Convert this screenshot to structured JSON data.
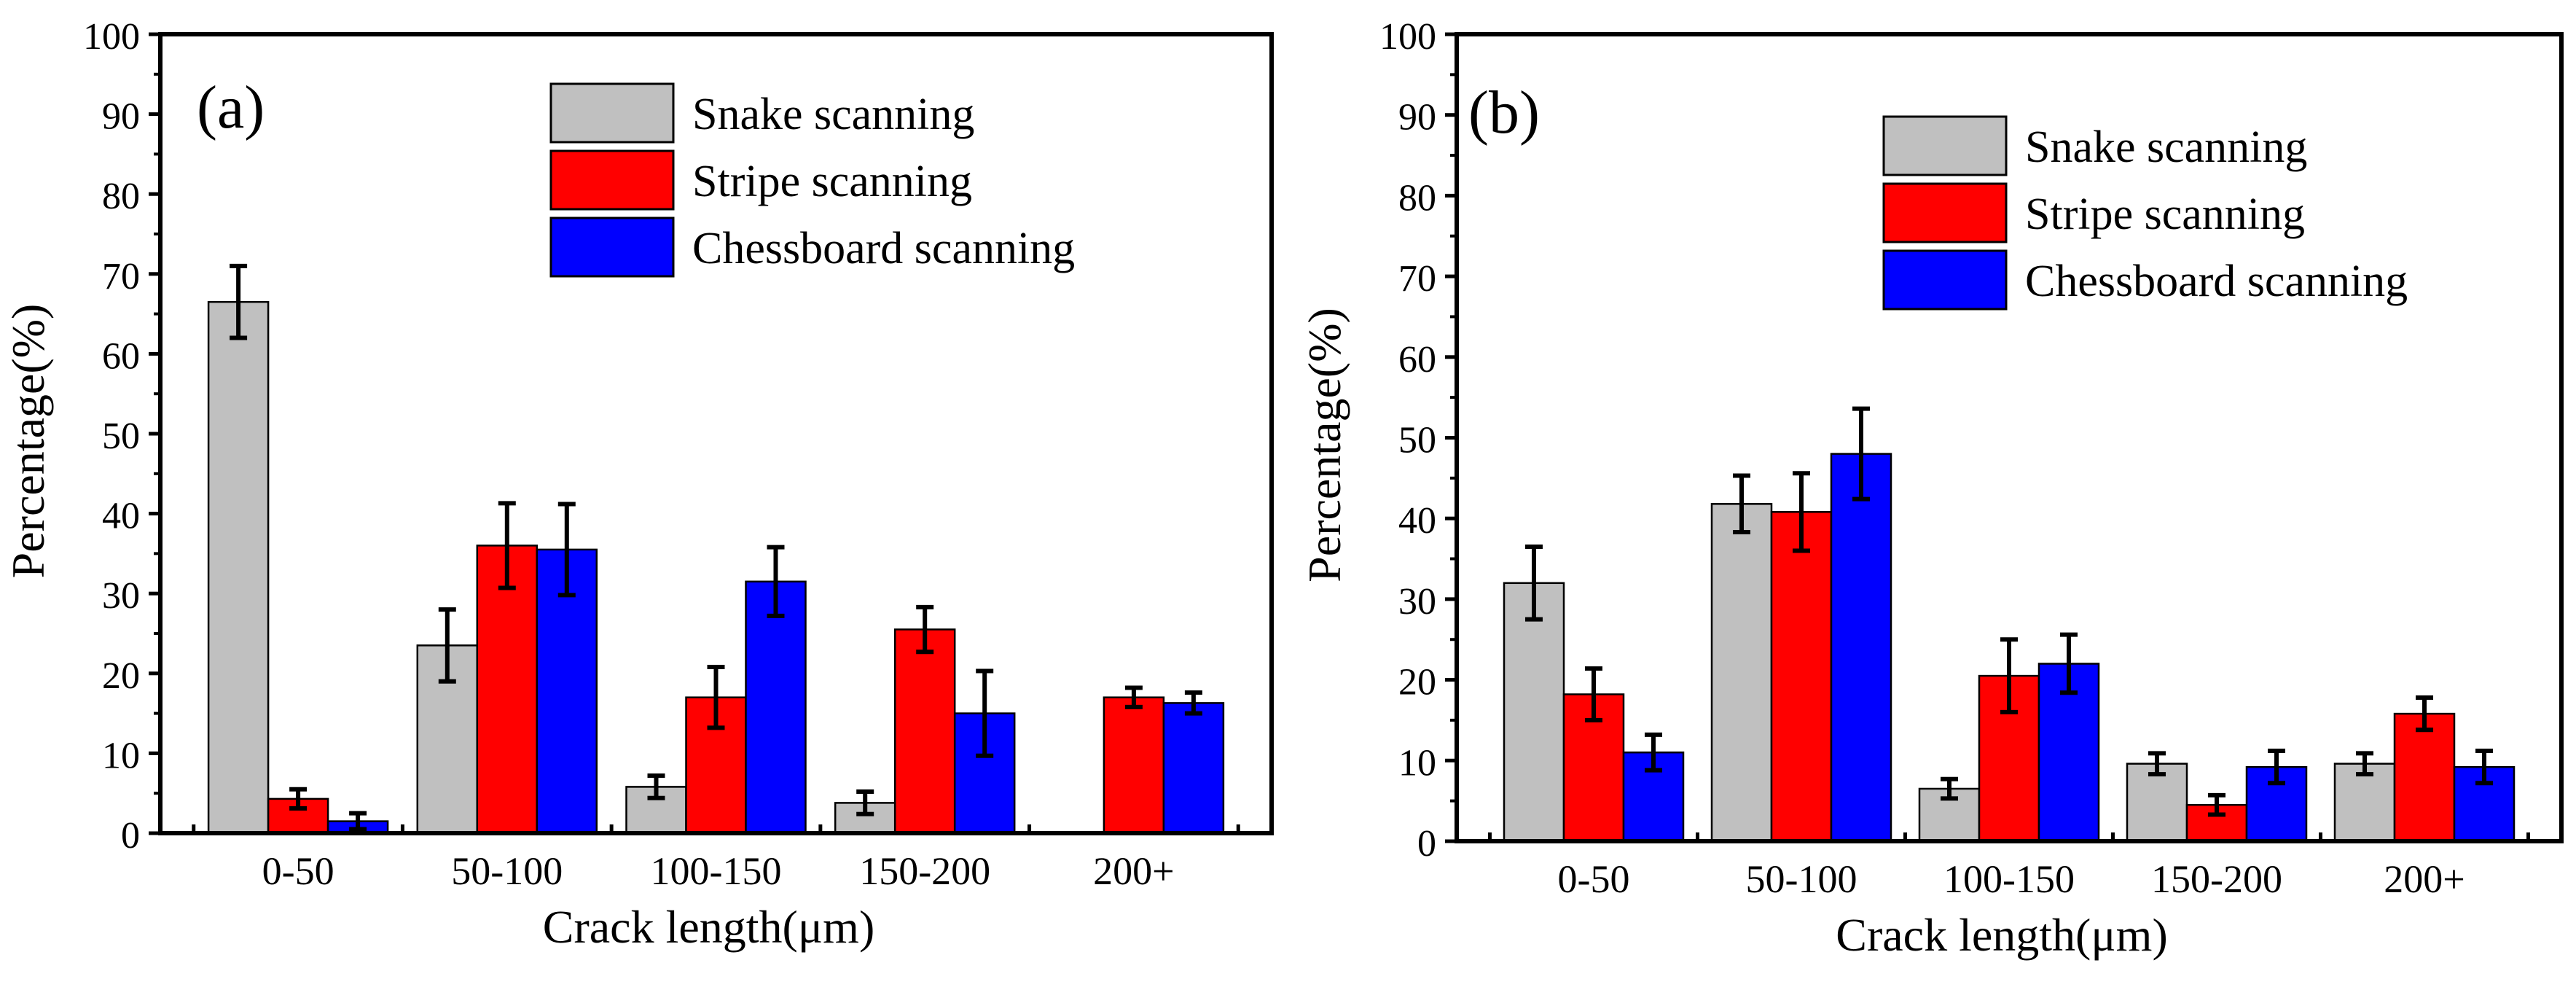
{
  "colors": {
    "snake": "#C0C0C0",
    "stripe": "#FF0000",
    "chessboard": "#0000FF",
    "axis": "#000000"
  },
  "chart_data": [
    {
      "panel_label": "(a)",
      "type": "bar",
      "categories": [
        "0-50",
        "50-100",
        "100-150",
        "150-200",
        "200+"
      ],
      "xlabel": "Crack length(μm)",
      "ylabel": "Percentage(%)",
      "ylim": [
        0,
        100
      ],
      "yticks": [
        "0",
        "10",
        "20",
        "30",
        "40",
        "50",
        "60",
        "70",
        "80",
        "90",
        "100"
      ],
      "legend_position": "top-right",
      "series": [
        {
          "name": "Snake scanning",
          "color_key": "snake",
          "values": [
            66.5,
            23.5,
            5.8,
            3.8,
            null
          ],
          "errors": [
            4.5,
            4.5,
            1.4,
            1.4,
            null
          ]
        },
        {
          "name": "Stripe scanning",
          "color_key": "stripe",
          "values": [
            4.3,
            36.0,
            17.0,
            25.5,
            17.0
          ],
          "errors": [
            1.2,
            5.3,
            3.8,
            2.8,
            1.2
          ]
        },
        {
          "name": "Chessboard scanning",
          "color_key": "chessboard",
          "values": [
            1.5,
            35.5,
            31.5,
            15.0,
            16.3
          ],
          "errors": [
            1.0,
            5.7,
            4.3,
            5.3,
            1.3
          ]
        }
      ]
    },
    {
      "panel_label": "(b)",
      "type": "bar",
      "categories": [
        "0-50",
        "50-100",
        "100-150",
        "150-200",
        "200+"
      ],
      "xlabel": "Crack length(μm)",
      "ylabel": "Percentage(%)",
      "ylim": [
        0,
        100
      ],
      "yticks": [
        "0",
        "10",
        "20",
        "30",
        "40",
        "50",
        "60",
        "70",
        "80",
        "90",
        "100"
      ],
      "legend_position": "top-right",
      "series": [
        {
          "name": "Snake scanning",
          "color_key": "snake",
          "values": [
            32.0,
            41.8,
            6.5,
            9.6,
            9.6
          ],
          "errors": [
            4.5,
            3.5,
            1.2,
            1.3,
            1.3
          ]
        },
        {
          "name": "Stripe scanning",
          "color_key": "stripe",
          "values": [
            18.2,
            40.8,
            20.5,
            4.5,
            15.8
          ],
          "errors": [
            3.2,
            4.8,
            4.5,
            1.2,
            2.0
          ]
        },
        {
          "name": "Chessboard scanning",
          "color_key": "chessboard",
          "values": [
            11.0,
            48.0,
            22.0,
            9.2,
            9.2
          ],
          "errors": [
            2.2,
            5.6,
            3.6,
            2.0,
            2.0
          ]
        }
      ]
    }
  ]
}
